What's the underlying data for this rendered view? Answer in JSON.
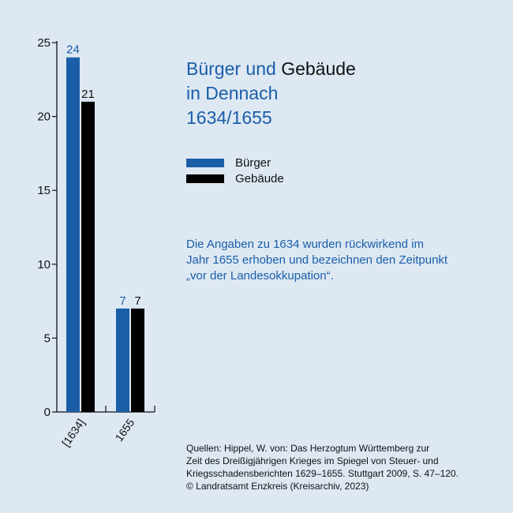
{
  "title": {
    "part1": "Bürger und",
    "part2": "Gebäude",
    "line2": "in Dennach",
    "line3": "1634/1655"
  },
  "legend": [
    {
      "label": "Bürger",
      "color": "#1a5ea8"
    },
    {
      "label": "Gebäude",
      "color": "#000000"
    }
  ],
  "note": {
    "line1": "Die Angaben zu 1634 wurden rückwirkend im",
    "line2": "Jahr 1655 erhoben und bezeichnen den Zeitpunkt",
    "line3": "„vor der Landesokkupation“."
  },
  "source": {
    "line1": "Quellen: Hippel, W. von: Das Herzogtum Württemberg zur",
    "line2": "Zeit des Dreißigjährigen Krieges im Spiegel von Steuer- und",
    "line3": "Kriegsschadensberichten 1629–1655. Stuttgart 2009, S. 47–120.",
    "line4": "© Landratsamt Enzkreis (Kreisarchiv, 2023)"
  },
  "chart_data": {
    "type": "bar",
    "categories": [
      "[1634]",
      "1655"
    ],
    "series": [
      {
        "name": "Bürger",
        "values": [
          24,
          7
        ],
        "color": "#1a5ea8"
      },
      {
        "name": "Gebäude",
        "values": [
          21,
          7
        ],
        "color": "#000000"
      }
    ],
    "ylim": [
      0,
      25
    ],
    "yticks": [
      "0",
      "5",
      "10",
      "15",
      "20",
      "25"
    ],
    "grid": false
  }
}
